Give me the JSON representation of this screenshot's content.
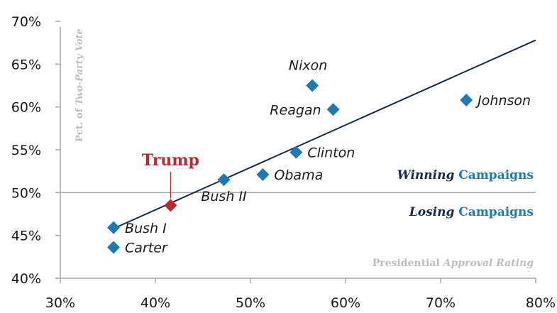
{
  "colors": {
    "point": "#1b7ab3",
    "highlight": "#c0262f",
    "trend": "#132a4a",
    "axis": "#a6a6a6",
    "label_dark": "#132a4a",
    "label_accent": "#1b7ab3",
    "muted": "#bdbdbd"
  },
  "chart_data": {
    "type": "scatter",
    "xlabel": "Presidential Approval Rating",
    "xlabel_parts": [
      "Presidential ",
      "Approval Rating"
    ],
    "ylabel": "Pct. of Two-Party Vote",
    "ylabel_parts": [
      "Pct. of ",
      "Two-Party Vote"
    ],
    "xlim": [
      0.3,
      0.8
    ],
    "ylim": [
      0.4,
      0.7
    ],
    "x_ticks": [
      {
        "value": 0.3,
        "label": "30%"
      },
      {
        "value": 0.4,
        "label": "40%"
      },
      {
        "value": 0.5,
        "label": "50%"
      },
      {
        "value": 0.6,
        "label": "60%"
      },
      {
        "value": 0.7,
        "label": "70%"
      },
      {
        "value": 0.8,
        "label": "80%"
      }
    ],
    "y_ticks": [
      {
        "value": 0.4,
        "label": "40%"
      },
      {
        "value": 0.45,
        "label": "45%"
      },
      {
        "value": 0.5,
        "label": "50%"
      },
      {
        "value": 0.55,
        "label": "55%"
      },
      {
        "value": 0.6,
        "label": "60%"
      },
      {
        "value": 0.65,
        "label": "65%"
      },
      {
        "value": 0.7,
        "label": "70%"
      }
    ],
    "reference_line_y": 0.5,
    "points": [
      {
        "label": "Nixon",
        "x": 0.565,
        "y": 0.625,
        "label_pos": "above"
      },
      {
        "label": "Reagan",
        "x": 0.587,
        "y": 0.597,
        "label_pos": "left"
      },
      {
        "label": "Johnson",
        "x": 0.727,
        "y": 0.608,
        "label_pos": "right"
      },
      {
        "label": "Clinton",
        "x": 0.548,
        "y": 0.547,
        "label_pos": "right"
      },
      {
        "label": "Obama",
        "x": 0.513,
        "y": 0.521,
        "label_pos": "right"
      },
      {
        "label": "Bush II",
        "x": 0.472,
        "y": 0.515,
        "label_pos": "below"
      },
      {
        "label": "Bush I",
        "x": 0.356,
        "y": 0.459,
        "label_pos": "right"
      },
      {
        "label": "Carter",
        "x": 0.356,
        "y": 0.436,
        "label_pos": "right"
      }
    ],
    "highlight_point": {
      "label": "Trump",
      "x": 0.416,
      "y": 0.485
    },
    "trend_line": {
      "x": [
        0.356,
        0.8
      ],
      "y": [
        0.458,
        0.678
      ]
    },
    "region_labels": {
      "winning": {
        "emph": "Winning",
        "rest": " Campaigns"
      },
      "losing": {
        "emph": "Losing",
        "rest": " Campaigns"
      }
    }
  }
}
